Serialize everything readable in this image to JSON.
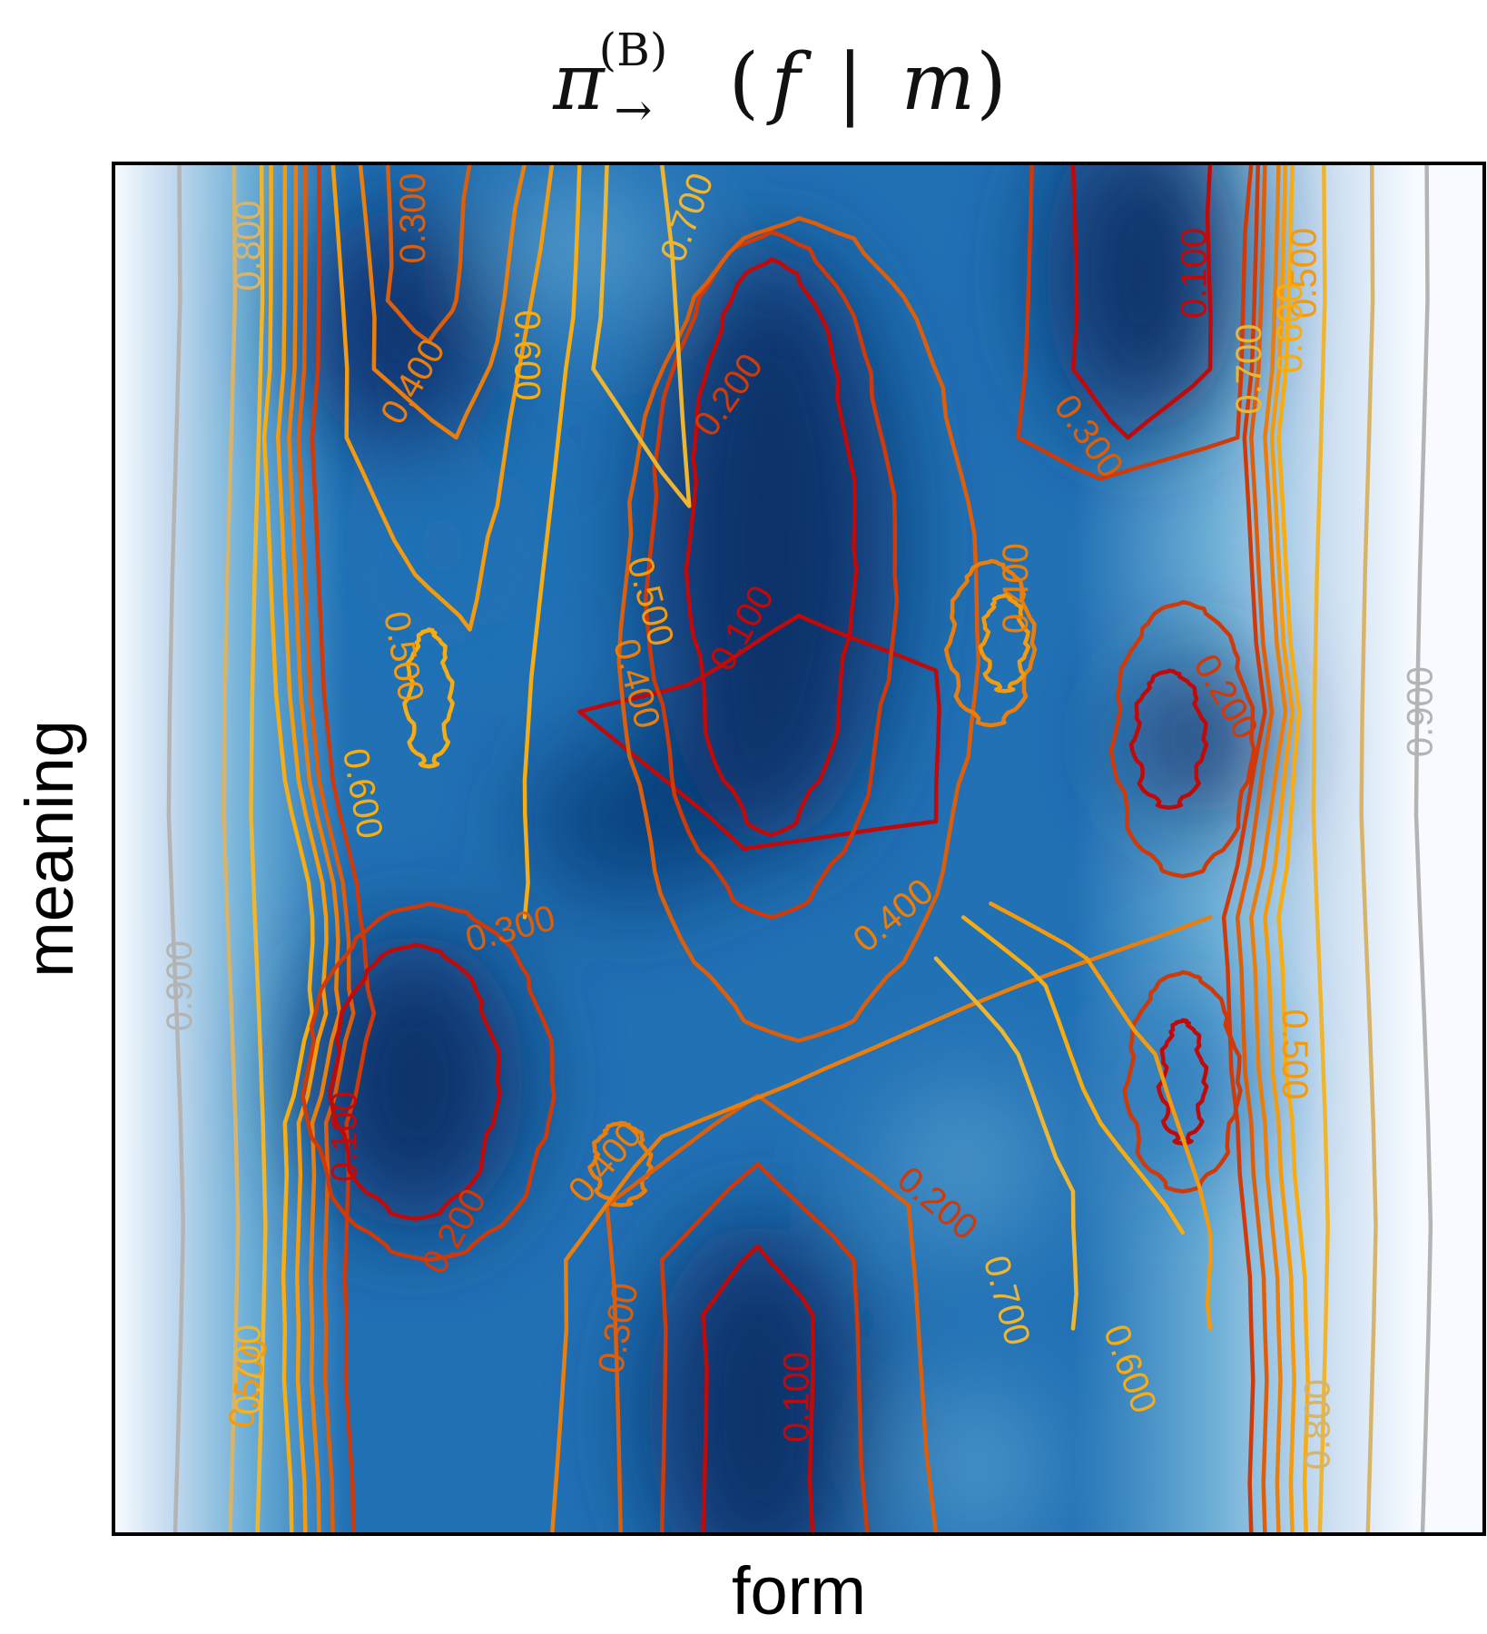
{
  "chart_data": {
    "type": "heatmap",
    "title": {
      "pi": "π",
      "superscript": "(B)",
      "subscript": "→",
      "open": "(",
      "f": "f",
      "bar": " | ",
      "m": "m",
      "close": ")"
    },
    "xlabel": "form",
    "ylabel": "meaning",
    "xlim": [
      0,
      1
    ],
    "ylim": [
      0,
      1
    ],
    "grid": false,
    "colormap": [
      "#f7fbff",
      "#c6dbef",
      "#6baed6",
      "#2171b5",
      "#08306b"
    ],
    "contour_levels": [
      0.1,
      0.2,
      0.3,
      0.4,
      0.5,
      0.6,
      0.7,
      0.8,
      0.9
    ],
    "contour_colors": {
      "0.1": "#c00a0a",
      "0.2": "#cf3a08",
      "0.3": "#dd5e0a",
      "0.4": "#ea7e0c",
      "0.5": "#f39a0e",
      "0.6": "#f7ac12",
      "0.7": "#eeb530",
      "0.8": "#d7b46c",
      "0.9": "#b4b4b4"
    },
    "contour_labels": [
      {
        "text": "0.100",
        "level": 0.1
      },
      {
        "text": "0.100",
        "level": 0.1
      },
      {
        "text": "0.100",
        "level": 0.1
      },
      {
        "text": "0.100",
        "level": 0.1
      },
      {
        "text": "0.200",
        "level": 0.2
      },
      {
        "text": "0.200",
        "level": 0.2
      },
      {
        "text": "0.200",
        "level": 0.2
      },
      {
        "text": "0.200",
        "level": 0.2
      },
      {
        "text": "0.300",
        "level": 0.3
      },
      {
        "text": "0.300",
        "level": 0.3
      },
      {
        "text": "0.300",
        "level": 0.3
      },
      {
        "text": "0.300",
        "level": 0.3
      },
      {
        "text": "0.400",
        "level": 0.4
      },
      {
        "text": "0.400",
        "level": 0.4
      },
      {
        "text": "0.400",
        "level": 0.4
      },
      {
        "text": "0.400",
        "level": 0.4
      },
      {
        "text": "0.400",
        "level": 0.4
      },
      {
        "text": "0.500",
        "level": 0.5
      },
      {
        "text": "0.500",
        "level": 0.5
      },
      {
        "text": "0.500",
        "level": 0.5
      },
      {
        "text": "0.500",
        "level": 0.5
      },
      {
        "text": "0.500",
        "level": 0.5
      },
      {
        "text": "0.600",
        "level": 0.6
      },
      {
        "text": "0.600",
        "level": 0.6
      },
      {
        "text": "0.600",
        "level": 0.6
      },
      {
        "text": "0.600",
        "level": 0.6
      },
      {
        "text": "0.700",
        "level": 0.7
      },
      {
        "text": "0.700",
        "level": 0.7
      },
      {
        "text": "0.700",
        "level": 0.7
      },
      {
        "text": "0.700",
        "level": 0.7
      },
      {
        "text": "0.800",
        "level": 0.8
      },
      {
        "text": "0.800",
        "level": 0.8
      },
      {
        "text": "0.900",
        "level": 0.9
      },
      {
        "text": "0.900",
        "level": 0.9
      }
    ]
  }
}
